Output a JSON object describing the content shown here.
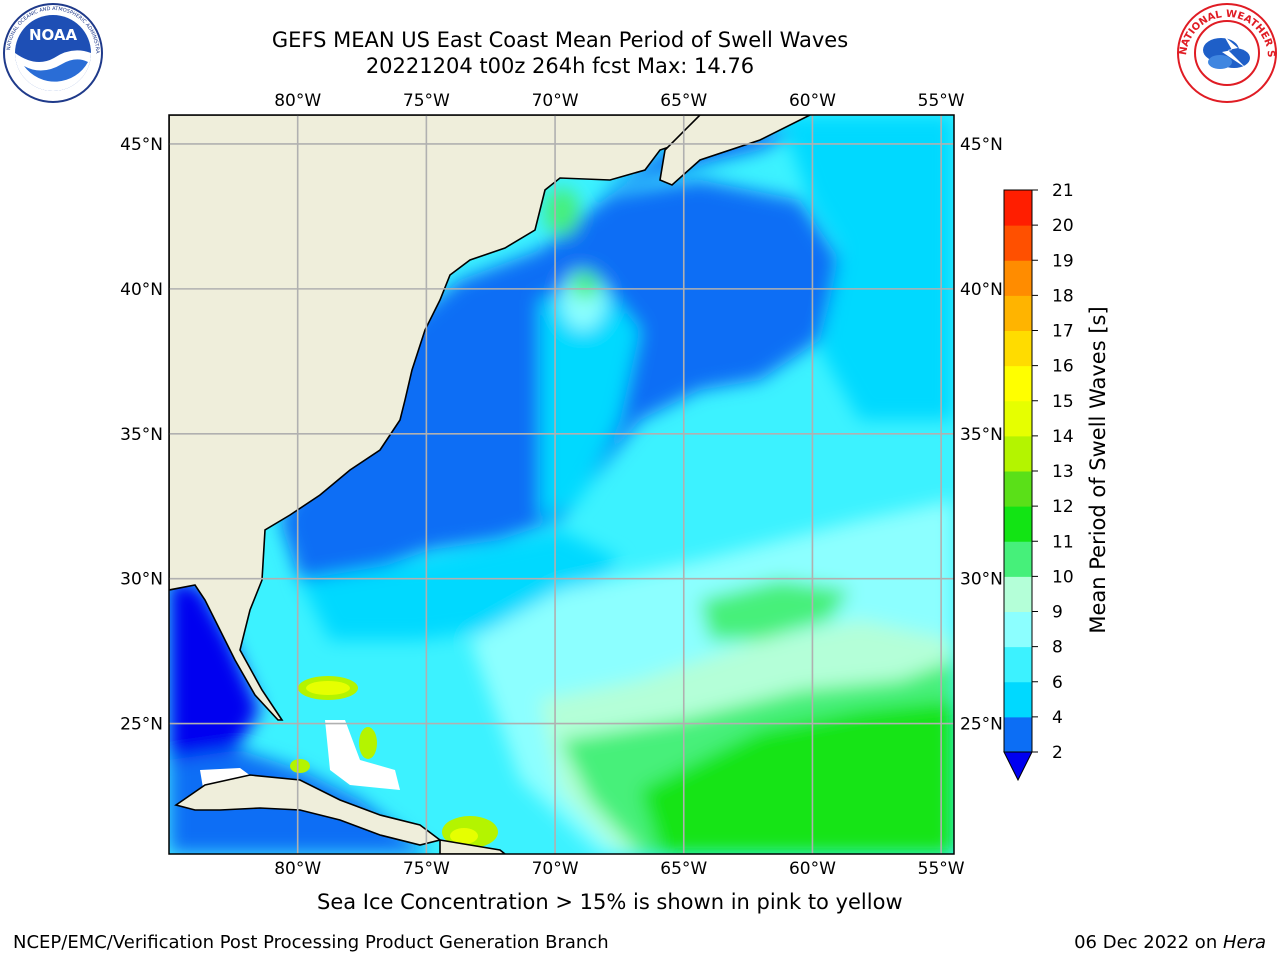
{
  "header": {
    "title_line1": "GEFS MEAN US East Coast Mean Period of Swell Waves",
    "title_line2": "20221204 t00z 264h fcst   Max: 14.76"
  },
  "logos": {
    "left": "noaa-logo",
    "right": "national-weather-service-logo",
    "right_text": "NATIONAL WEATHER SERVICE",
    "left_text": "NATIONAL OCEANIC AND ATMOSPHERIC ADMINISTRATION · U.S. DEPARTMENT OF COMMERCE",
    "left_abbr": "NOAA"
  },
  "map": {
    "lon_labels_top": [
      "80°W",
      "75°W",
      "70°W",
      "65°W",
      "60°W",
      "55°W"
    ],
    "lon_labels_bottom": [
      "80°W",
      "75°W",
      "70°W",
      "65°W",
      "60°W",
      "55°W"
    ],
    "lat_labels_left": [
      "45°N",
      "40°N",
      "35°N",
      "30°N",
      "25°N"
    ],
    "lat_labels_right": [
      "45°N",
      "40°N",
      "35°N",
      "30°N",
      "25°N"
    ],
    "lon_values": [
      -80,
      -75,
      -70,
      -65,
      -60,
      -55
    ],
    "lat_values": [
      45,
      40,
      35,
      30,
      25
    ],
    "extent": {
      "lon_min": -85,
      "lon_max": -54.5,
      "lat_min": 20.5,
      "lat_max": 46
    },
    "colors": {
      "land": "#efeedb",
      "grid": "#b0b0b0",
      "coast": "#000000"
    }
  },
  "colorbar": {
    "label": "Mean Period of Swell Waves [s]",
    "ticks": [
      "2",
      "4",
      "6",
      "8",
      "9",
      "10",
      "11",
      "12",
      "13",
      "14",
      "15",
      "16",
      "17",
      "18",
      "19",
      "20",
      "21"
    ],
    "colors": [
      "#0c6ef5",
      "#00d9ff",
      "#3cf2ff",
      "#8cffff",
      "#b4ffd8",
      "#46f07a",
      "#12e414",
      "#5ae018",
      "#b4f400",
      "#e6ff00",
      "#ffff00",
      "#ffdc00",
      "#ffb400",
      "#ff8c00",
      "#ff5000",
      "#ff1e00"
    ],
    "extend_color": "#0000f0"
  },
  "caption": "Sea Ice Concentration > 15% is shown in pink to yellow",
  "footer": {
    "left": "NCEP/EMC/Verification Post Processing Product Generation Branch",
    "right_date": "06 Dec 2022 on ",
    "right_host": "Hera"
  }
}
